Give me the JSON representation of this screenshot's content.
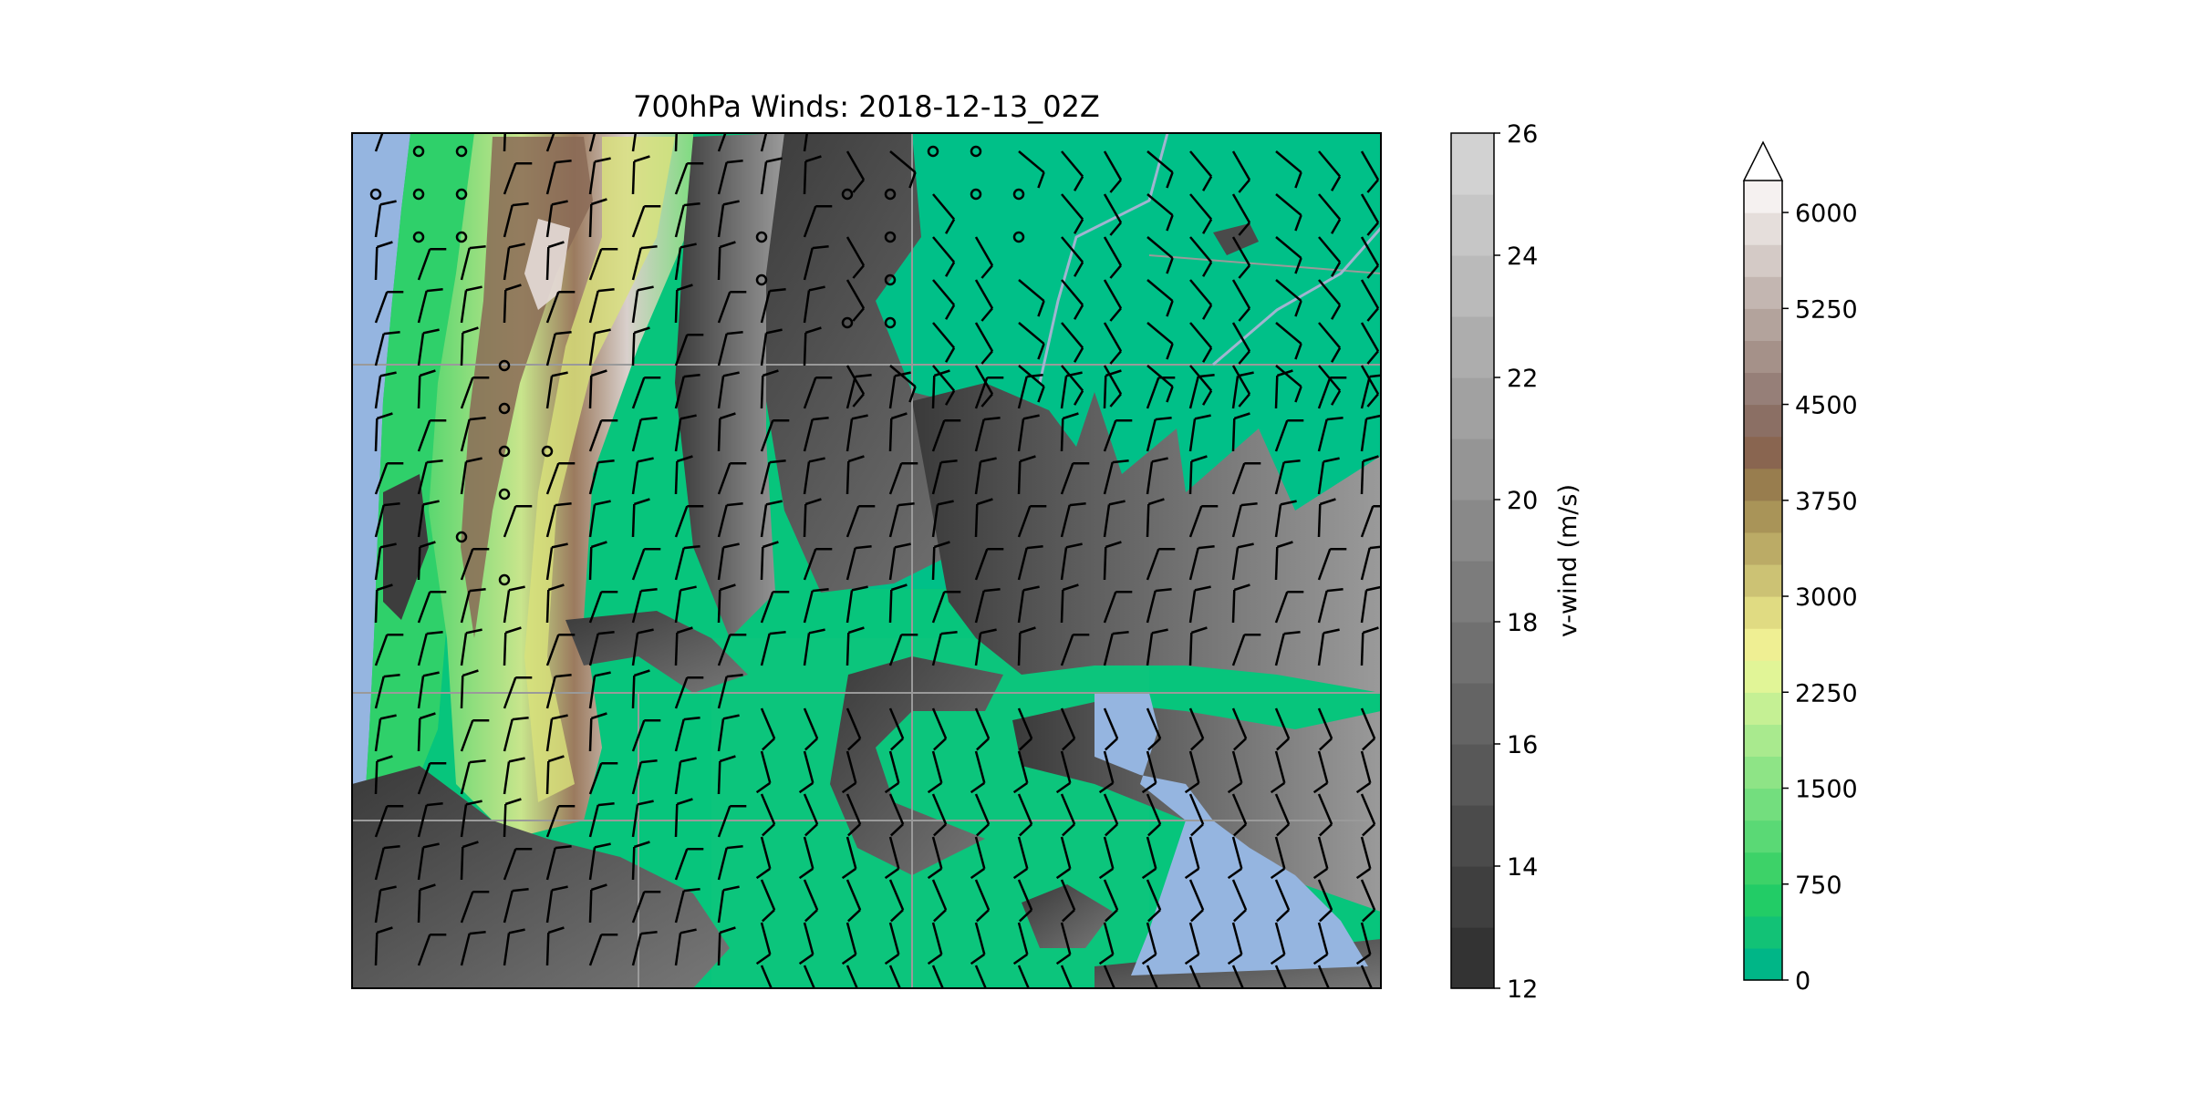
{
  "title": "700hPa Winds: 2018-12-13_02Z",
  "colorbars": {
    "vwind": {
      "label": "v-wind (m/s)",
      "ticks": [
        "12",
        "14",
        "16",
        "18",
        "20",
        "22",
        "24",
        "26"
      ],
      "min": 12,
      "max": 26,
      "levels": 14,
      "color_low": "#333333",
      "color_high": "#d2d2d2"
    },
    "terrain": {
      "ticks": [
        "0",
        "750",
        "1500",
        "2250",
        "3000",
        "3750",
        "4500",
        "5250",
        "6000"
      ],
      "min": 0,
      "max": 6250,
      "levels": 25,
      "extend": "max",
      "colors": [
        "#00b687",
        "#12c276",
        "#22cc66",
        "#3dd268",
        "#5ad975",
        "#73de7e",
        "#8ee486",
        "#a9ea8e",
        "#c5f094",
        "#e1f597",
        "#efef93",
        "#e0db82",
        "#ccc274",
        "#bbab66",
        "#a99458",
        "#987d4e",
        "#896550",
        "#8b6f64",
        "#967f78",
        "#a59189",
        "#b3a39c",
        "#c3b6b1",
        "#d4cac6",
        "#e5dedb",
        "#f5f1f0",
        "#ffffff"
      ]
    }
  },
  "map_colors": {
    "water": "#95b5e0",
    "low_terrain": "#00c087",
    "wind_barb": "#000000",
    "borders": "#999999",
    "rivers": "#a0b4d0"
  }
}
